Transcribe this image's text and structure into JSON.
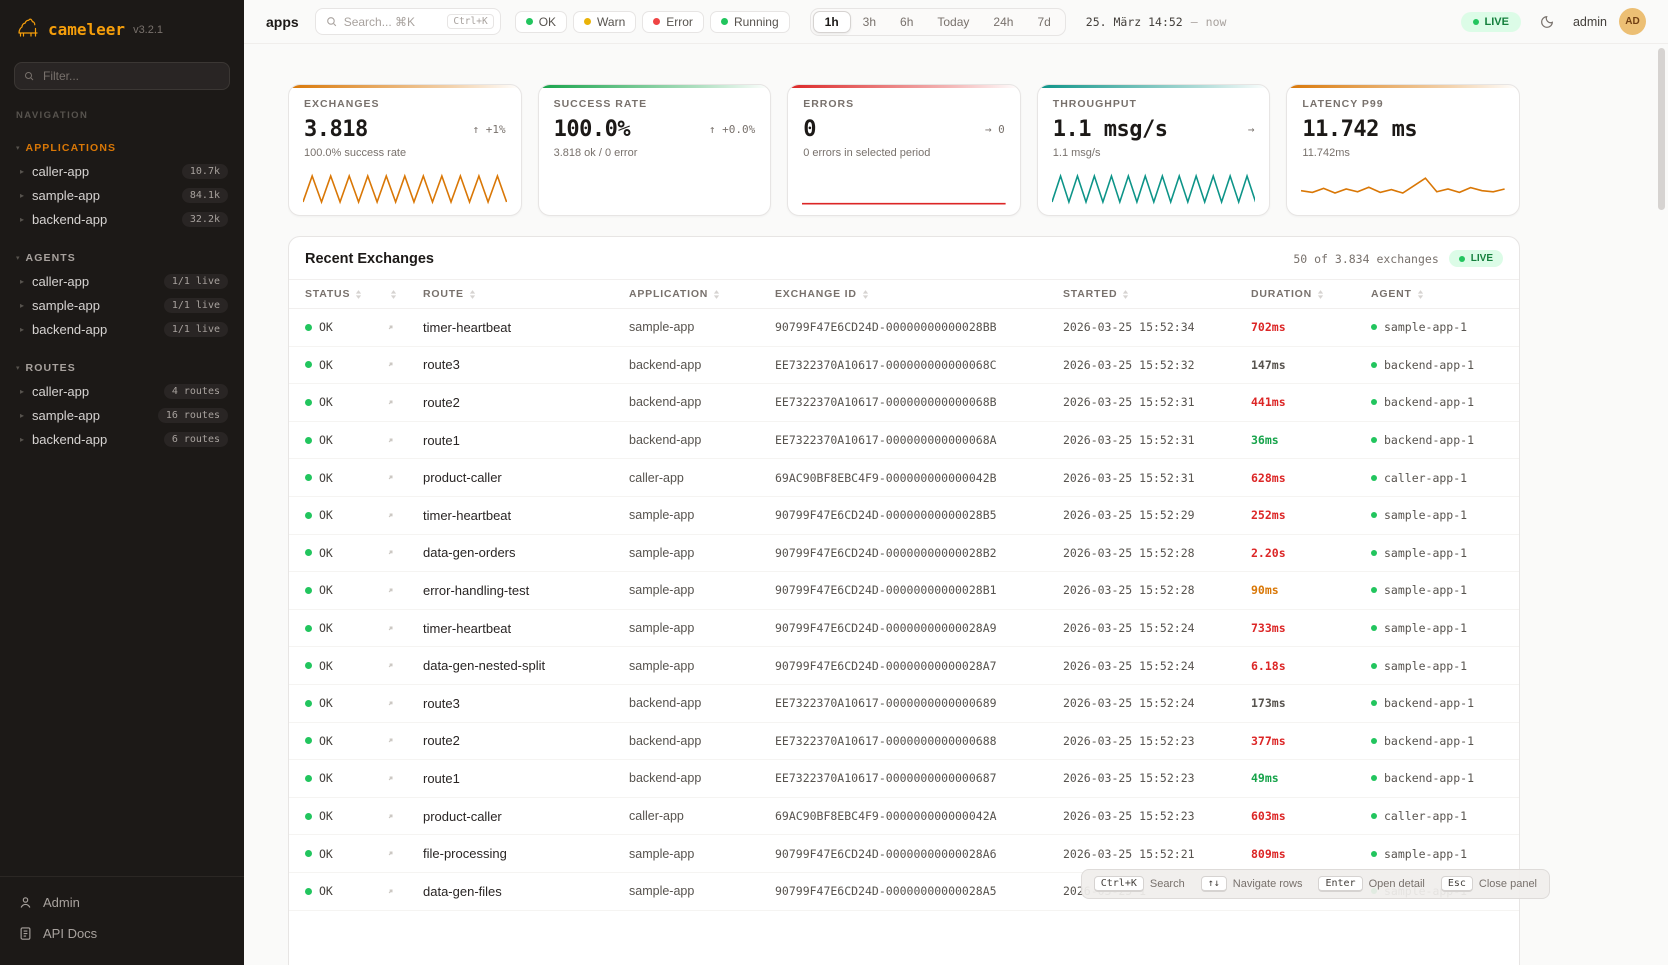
{
  "sidebar": {
    "logo": "cameleer",
    "version": "v3.2.1",
    "filter_placeholder": "Filter...",
    "nav_label": "NAVIGATION",
    "sections": [
      {
        "title": "APPLICATIONS",
        "title_color": "#d97706",
        "items": [
          {
            "label": "caller-app",
            "badge": "10.7k"
          },
          {
            "label": "sample-app",
            "badge": "84.1k"
          },
          {
            "label": "backend-app",
            "badge": "32.2k"
          }
        ]
      },
      {
        "title": "AGENTS",
        "title_color": "",
        "items": [
          {
            "label": "caller-app",
            "badge": "1/1 live"
          },
          {
            "label": "sample-app",
            "badge": "1/1 live"
          },
          {
            "label": "backend-app",
            "badge": "1/1 live"
          }
        ]
      },
      {
        "title": "ROUTES",
        "title_color": "",
        "items": [
          {
            "label": "caller-app",
            "badge": "4 routes"
          },
          {
            "label": "sample-app",
            "badge": "16 routes"
          },
          {
            "label": "backend-app",
            "badge": "6 routes"
          }
        ]
      }
    ],
    "footer": [
      {
        "label": "Admin"
      },
      {
        "label": "API Docs"
      }
    ]
  },
  "header": {
    "page_title": "apps",
    "search": {
      "placeholder": "Search... ⌘K",
      "shortcut": "Ctrl+K"
    },
    "status_filters": [
      {
        "label": "OK",
        "dot": "#22c55e"
      },
      {
        "label": "Warn",
        "dot": "#eab308"
      },
      {
        "label": "Error",
        "dot": "#ef4444"
      },
      {
        "label": "Running",
        "dot": "#22c55e"
      }
    ],
    "time_ranges": [
      "1h",
      "3h",
      "6h",
      "Today",
      "24h",
      "7d"
    ],
    "active_range": "1h",
    "period": {
      "from": "25. März 14:52",
      "separator": "—",
      "to": "now"
    },
    "live_label": "LIVE",
    "username": "admin",
    "avatar_initials": "AD"
  },
  "cards": [
    {
      "title": "EXCHANGES",
      "value": "3.818",
      "delta": "↑ +1%",
      "sub": "100.0% success rate",
      "accent": "#d97706",
      "spark_color": "#d97706",
      "spark": [
        88,
        12,
        88,
        12,
        88,
        12,
        88,
        12,
        88,
        12,
        88,
        12,
        88,
        12,
        88,
        12,
        88,
        12,
        88,
        12,
        88,
        12,
        88
      ]
    },
    {
      "title": "SUCCESS RATE",
      "value": "100.0%",
      "delta": "↑ +0.0%",
      "sub": "3.818 ok / 0 error",
      "accent": "#16a34a",
      "spark_color": "#16a34a",
      "spark": []
    },
    {
      "title": "ERRORS",
      "value": "0",
      "delta": "→ 0",
      "sub": "0 errors in selected period",
      "accent": "#dc2626",
      "spark_color": "#dc2626",
      "spark": [
        93,
        93
      ]
    },
    {
      "title": "THROUGHPUT",
      "value": "1.1 msg/s",
      "delta": "→",
      "sub": "1.1 msg/s",
      "accent": "#0d9488",
      "spark_color": "#0d9488",
      "spark": [
        88,
        12,
        88,
        12,
        88,
        12,
        88,
        12,
        88,
        12,
        88,
        12,
        88,
        12,
        88,
        12,
        88,
        12,
        88,
        12,
        88,
        12,
        88,
        12,
        88
      ]
    },
    {
      "title": "LATENCY P99",
      "value": "11.742 ms",
      "delta": "",
      "sub": "11.742ms",
      "accent": "#d97706",
      "spark_color": "#d97706",
      "spark": [
        55,
        60,
        48,
        62,
        50,
        58,
        45,
        60,
        52,
        62,
        40,
        18,
        58,
        50,
        60,
        46,
        55,
        58,
        50
      ]
    }
  ],
  "table": {
    "title": "Recent Exchanges",
    "summary": "50 of 3.834 exchanges",
    "live_label": "LIVE",
    "columns": [
      {
        "label": "STATUS"
      },
      {
        "label": ""
      },
      {
        "label": "ROUTE"
      },
      {
        "label": "APPLICATION"
      },
      {
        "label": "EXCHANGE ID"
      },
      {
        "label": "STARTED"
      },
      {
        "label": "DURATION"
      },
      {
        "label": "AGENT"
      }
    ],
    "rows": [
      {
        "status": "OK",
        "route": "timer-heartbeat",
        "application": "sample-app",
        "exchange_id": "90799F47E6CD24D-00000000000028BB",
        "started": "2026-03-25 15:52:34",
        "duration": "702ms",
        "duration_color": "#dc2626",
        "agent": "sample-app-1"
      },
      {
        "status": "OK",
        "route": "route3",
        "application": "backend-app",
        "exchange_id": "EE7322370A10617-000000000000068C",
        "started": "2026-03-25 15:52:32",
        "duration": "147ms",
        "duration_color": "#57534e",
        "agent": "backend-app-1"
      },
      {
        "status": "OK",
        "route": "route2",
        "application": "backend-app",
        "exchange_id": "EE7322370A10617-000000000000068B",
        "started": "2026-03-25 15:52:31",
        "duration": "441ms",
        "duration_color": "#dc2626",
        "agent": "backend-app-1"
      },
      {
        "status": "OK",
        "route": "route1",
        "application": "backend-app",
        "exchange_id": "EE7322370A10617-000000000000068A",
        "started": "2026-03-25 15:52:31",
        "duration": "36ms",
        "duration_color": "#16a34a",
        "agent": "backend-app-1"
      },
      {
        "status": "OK",
        "route": "product-caller",
        "application": "caller-app",
        "exchange_id": "69AC90BF8EBC4F9-000000000000042B",
        "started": "2026-03-25 15:52:31",
        "duration": "628ms",
        "duration_color": "#dc2626",
        "agent": "caller-app-1"
      },
      {
        "status": "OK",
        "route": "timer-heartbeat",
        "application": "sample-app",
        "exchange_id": "90799F47E6CD24D-00000000000028B5",
        "started": "2026-03-25 15:52:29",
        "duration": "252ms",
        "duration_color": "#dc2626",
        "agent": "sample-app-1"
      },
      {
        "status": "OK",
        "route": "data-gen-orders",
        "application": "sample-app",
        "exchange_id": "90799F47E6CD24D-00000000000028B2",
        "started": "2026-03-25 15:52:28",
        "duration": "2.20s",
        "duration_color": "#dc2626",
        "agent": "sample-app-1"
      },
      {
        "status": "OK",
        "route": "error-handling-test",
        "application": "sample-app",
        "exchange_id": "90799F47E6CD24D-00000000000028B1",
        "started": "2026-03-25 15:52:28",
        "duration": "90ms",
        "duration_color": "#d97706",
        "agent": "sample-app-1"
      },
      {
        "status": "OK",
        "route": "timer-heartbeat",
        "application": "sample-app",
        "exchange_id": "90799F47E6CD24D-00000000000028A9",
        "started": "2026-03-25 15:52:24",
        "duration": "733ms",
        "duration_color": "#dc2626",
        "agent": "sample-app-1"
      },
      {
        "status": "OK",
        "route": "data-gen-nested-split",
        "application": "sample-app",
        "exchange_id": "90799F47E6CD24D-00000000000028A7",
        "started": "2026-03-25 15:52:24",
        "duration": "6.18s",
        "duration_color": "#dc2626",
        "agent": "sample-app-1"
      },
      {
        "status": "OK",
        "route": "route3",
        "application": "backend-app",
        "exchange_id": "EE7322370A10617-0000000000000689",
        "started": "2026-03-25 15:52:24",
        "duration": "173ms",
        "duration_color": "#57534e",
        "agent": "backend-app-1"
      },
      {
        "status": "OK",
        "route": "route2",
        "application": "backend-app",
        "exchange_id": "EE7322370A10617-0000000000000688",
        "started": "2026-03-25 15:52:23",
        "duration": "377ms",
        "duration_color": "#dc2626",
        "agent": "backend-app-1"
      },
      {
        "status": "OK",
        "route": "route1",
        "application": "backend-app",
        "exchange_id": "EE7322370A10617-0000000000000687",
        "started": "2026-03-25 15:52:23",
        "duration": "49ms",
        "duration_color": "#16a34a",
        "agent": "backend-app-1"
      },
      {
        "status": "OK",
        "route": "product-caller",
        "application": "caller-app",
        "exchange_id": "69AC90BF8EBC4F9-000000000000042A",
        "started": "2026-03-25 15:52:23",
        "duration": "603ms",
        "duration_color": "#dc2626",
        "agent": "caller-app-1"
      },
      {
        "status": "OK",
        "route": "file-processing",
        "application": "sample-app",
        "exchange_id": "90799F47E6CD24D-00000000000028A6",
        "started": "2026-03-25 15:52:21",
        "duration": "809ms",
        "duration_color": "#dc2626",
        "agent": "sample-app-1"
      },
      {
        "status": "OK",
        "route": "data-gen-files",
        "application": "sample-app",
        "exchange_id": "90799F47E6CD24D-00000000000028A5",
        "started": "2026-03-25 1",
        "duration": "",
        "duration_color": "#57534e",
        "agent": "sample-app-1"
      }
    ]
  },
  "shortcuts": [
    {
      "key": "Ctrl+K",
      "label": "Search"
    },
    {
      "key": "↑↓",
      "label": "Navigate rows"
    },
    {
      "key": "Enter",
      "label": "Open detail"
    },
    {
      "key": "Esc",
      "label": "Close panel"
    }
  ]
}
